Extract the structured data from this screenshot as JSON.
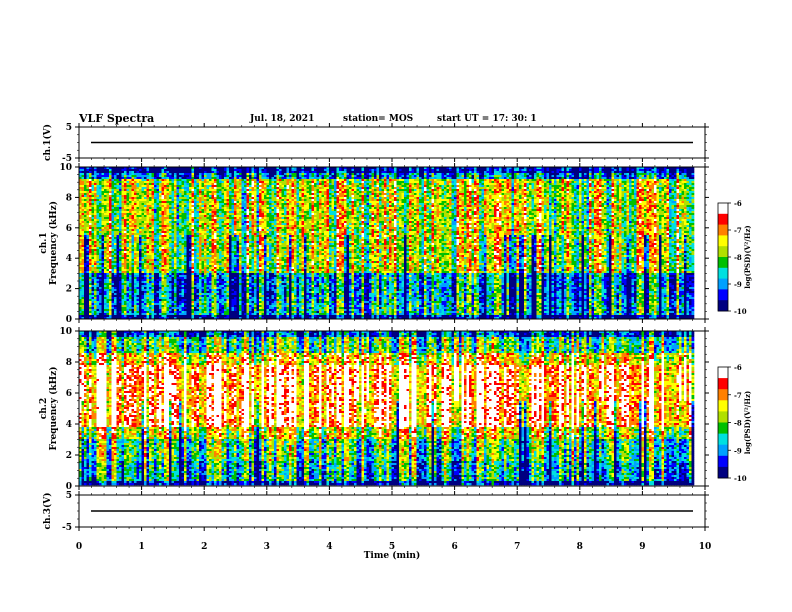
{
  "header": {
    "title": "VLF Spectra",
    "date": "Jul. 18, 2021",
    "station": "station= MOS",
    "start": "start  UT =   17: 30: 1"
  },
  "chart_data": [
    {
      "type": "line",
      "ylabel": "ch.1(V)",
      "ylim": [
        -5,
        5
      ],
      "yticks": [
        5,
        -5
      ],
      "xlim": [
        0,
        10
      ],
      "series_level": 0
    },
    {
      "type": "heatmap",
      "ylabel": "ch.1\nFrequency (kHz)",
      "ylim": [
        0,
        10
      ],
      "yticks": [
        0,
        2,
        4,
        6,
        8,
        10
      ],
      "xlim": [
        0,
        10
      ],
      "data_end_min": 9.83,
      "colorbar": {
        "label": "log(PSD)(V²/Hz)",
        "ticks": [
          -6,
          -7,
          -8,
          -9,
          -10
        ],
        "range": [
          -10,
          -6
        ]
      }
    },
    {
      "type": "heatmap",
      "ylabel": "ch.2\nFrequency (kHz)",
      "ylim": [
        0,
        10
      ],
      "yticks": [
        0,
        2,
        4,
        6,
        8,
        10
      ],
      "xlim": [
        0,
        10
      ],
      "data_end_min": 9.83,
      "colorbar": {
        "label": "log(PSD)(V²/Hz)",
        "ticks": [
          -6,
          -7,
          -8,
          -9,
          -10
        ],
        "range": [
          -10,
          -6
        ]
      }
    },
    {
      "type": "line",
      "ylabel": "ch.3(V)",
      "ylim": [
        -5,
        5
      ],
      "yticks": [
        5,
        -5
      ],
      "xlim": [
        0,
        10
      ],
      "series_level": 0,
      "xlabel": "Time (min)",
      "xticks": [
        0,
        1,
        2,
        3,
        4,
        5,
        6,
        7,
        8,
        9,
        10
      ]
    }
  ],
  "colors": {
    "scale": [
      "#000080",
      "#0000ff",
      "#00a0ff",
      "#00e0e0",
      "#00c000",
      "#b0e000",
      "#ffff00",
      "#ff8000",
      "#ff0000",
      "#ffffff"
    ]
  }
}
